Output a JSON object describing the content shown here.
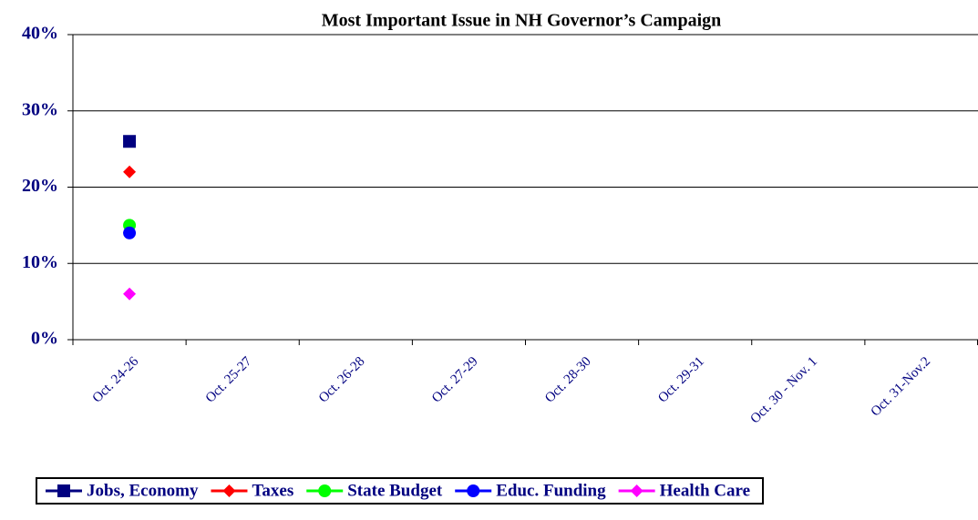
{
  "chart_data": {
    "type": "line",
    "title": "Most Important Issue in NH Governor’s Campaign",
    "categories": [
      "Oct. 24-26",
      "Oct. 25-27",
      "Oct. 26-28",
      "Oct. 27-29",
      "Oct. 28-30",
      "Oct. 29-31",
      "Oct. 30 - Nov. 1",
      "Oct. 31-Nov.2"
    ],
    "series": [
      {
        "name": "Jobs, Economy",
        "color": "#000080",
        "marker": "square",
        "values": [
          26,
          null,
          null,
          null,
          null,
          null,
          null,
          null
        ]
      },
      {
        "name": "Taxes",
        "color": "#ff0000",
        "marker": "diamond",
        "values": [
          22,
          null,
          null,
          null,
          null,
          null,
          null,
          null
        ]
      },
      {
        "name": "State Budget",
        "color": "#00ff00",
        "marker": "circle",
        "values": [
          15,
          null,
          null,
          null,
          null,
          null,
          null,
          null
        ]
      },
      {
        "name": "Educ. Funding",
        "color": "#0000ff",
        "marker": "circle",
        "values": [
          14,
          null,
          null,
          null,
          null,
          null,
          null,
          null
        ]
      },
      {
        "name": "Health Care",
        "color": "#ff00ff",
        "marker": "diamond",
        "values": [
          6,
          null,
          null,
          null,
          null,
          null,
          null,
          null
        ]
      }
    ],
    "ylim": [
      0,
      40
    ],
    "yticks": [
      {
        "value": 0,
        "label": "0%"
      },
      {
        "value": 10,
        "label": "10%"
      },
      {
        "value": 20,
        "label": "20%"
      },
      {
        "value": 30,
        "label": "30%"
      },
      {
        "value": 40,
        "label": "40%"
      }
    ],
    "grid": true,
    "legend": "bottom"
  }
}
